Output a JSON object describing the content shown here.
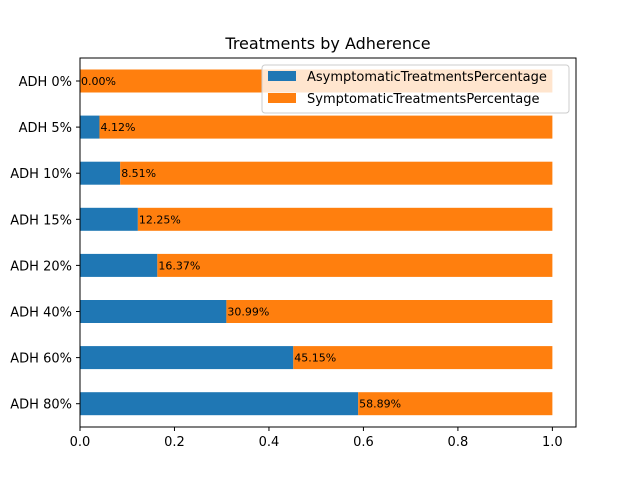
{
  "chart_data": {
    "type": "bar",
    "orientation": "horizontal",
    "stacked": true,
    "title": "Treatments by Adherence",
    "xlabel": "",
    "ylabel": "",
    "xlim": [
      0,
      1.05
    ],
    "xticks": [
      "0.0",
      "0.2",
      "0.4",
      "0.6",
      "0.8",
      "1.0"
    ],
    "categories": [
      "ADH 0%",
      "ADH 5%",
      "ADH 10%",
      "ADH 15%",
      "ADH 20%",
      "ADH 40%",
      "ADH 60%",
      "ADH 80%"
    ],
    "series": [
      {
        "name": "AsymptomaticTreatmentsPercentage",
        "color": "#1f77b4",
        "values": [
          0.0,
          0.0412,
          0.0851,
          0.1225,
          0.1637,
          0.3099,
          0.4515,
          0.5889
        ],
        "data_labels": [
          "0.00%",
          "4.12%",
          "8.51%",
          "12.25%",
          "16.37%",
          "30.99%",
          "45.15%",
          "58.89%"
        ]
      },
      {
        "name": "SymptomaticTreatmentsPercentage",
        "color": "#ff7f0e",
        "values": [
          1.0,
          0.9588,
          0.9149,
          0.8775,
          0.8363,
          0.6901,
          0.5485,
          0.4111
        ]
      }
    ],
    "grid": false,
    "legend_position": "top-right"
  }
}
